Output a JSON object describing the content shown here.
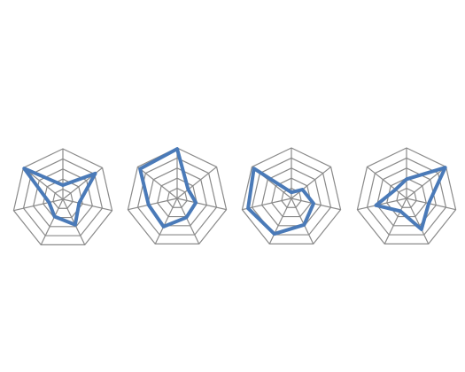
{
  "colors": {
    "series": "#4a7ab8",
    "grid": "#8a8a8a",
    "background": "#ffffff"
  },
  "chart_data": [
    {
      "type": "radar",
      "axes_count": 7,
      "rlim": [
        0,
        1
      ],
      "grid_rings": 5,
      "grid": true,
      "values": [
        0.28,
        0.82,
        0.33,
        0.56,
        0.38,
        0.28,
        0.98
      ]
    },
    {
      "type": "radar",
      "axes_count": 7,
      "rlim": [
        0,
        1
      ],
      "grid_rings": 5,
      "grid": true,
      "values": [
        0.98,
        0.28,
        0.38,
        0.42,
        0.62,
        0.58,
        0.94
      ]
    },
    {
      "type": "radar",
      "axes_count": 7,
      "rlim": [
        0,
        1
      ],
      "grid_rings": 5,
      "grid": true,
      "values": [
        0.12,
        0.28,
        0.45,
        0.58,
        0.78,
        0.88,
        0.95
      ]
    },
    {
      "type": "radar",
      "axes_count": 7,
      "rlim": [
        0,
        1
      ],
      "grid_rings": 5,
      "grid": true,
      "values": [
        0.38,
        0.98,
        0.45,
        0.68,
        0.28,
        0.62,
        0.28
      ]
    }
  ]
}
